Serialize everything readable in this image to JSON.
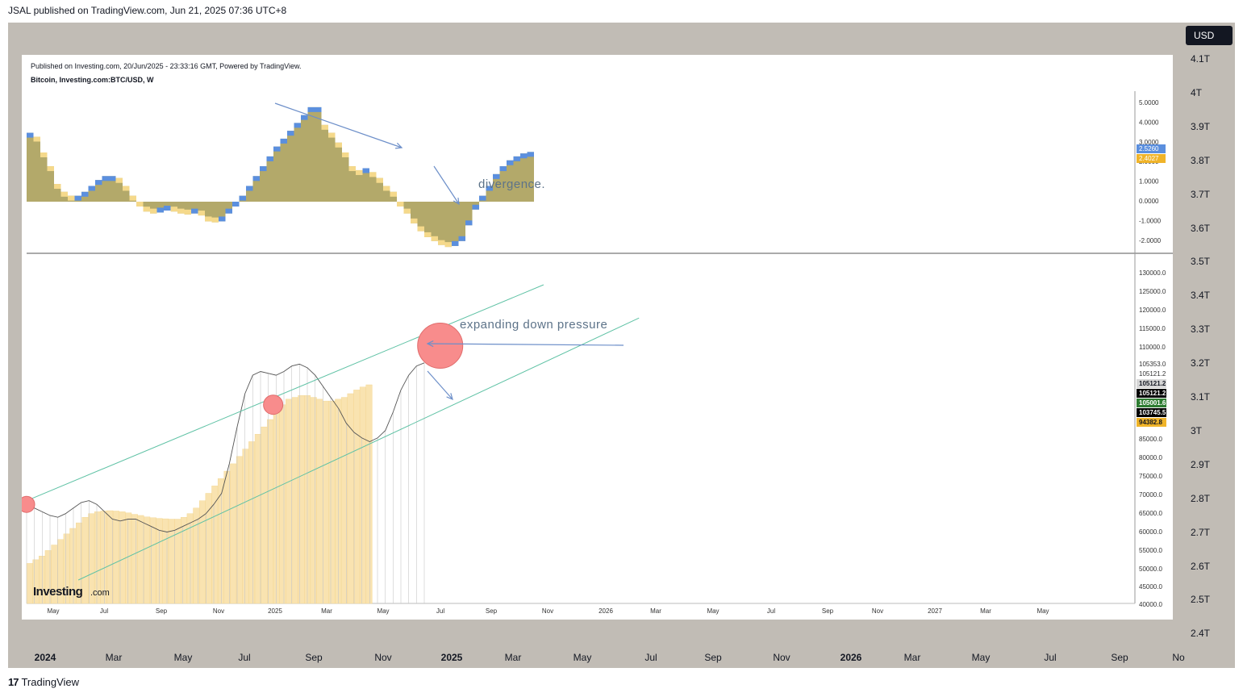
{
  "header": {
    "published_by": "JSAL published on TradingView.com, Jun 21, 2025 07:36 UTC+8"
  },
  "currency_button": "USD",
  "outer_price_axis": [
    "4.1T",
    "4T",
    "3.9T",
    "3.8T",
    "3.7T",
    "3.6T",
    "3.5T",
    "3.4T",
    "3.3T",
    "3.2T",
    "3.1T",
    "3T",
    "2.9T",
    "2.8T",
    "2.7T",
    "2.6T",
    "2.5T",
    "2.4T"
  ],
  "outer_time_axis": [
    {
      "label": "2024",
      "bold": true
    },
    {
      "label": "Mar"
    },
    {
      "label": "May"
    },
    {
      "label": "Jul"
    },
    {
      "label": "Sep"
    },
    {
      "label": "Nov"
    },
    {
      "label": "2025",
      "bold": true
    },
    {
      "label": "Mar"
    },
    {
      "label": "May"
    },
    {
      "label": "Jul"
    },
    {
      "label": "Sep"
    },
    {
      "label": "Nov"
    },
    {
      "label": "2026",
      "bold": true
    },
    {
      "label": "Mar"
    },
    {
      "label": "May"
    },
    {
      "label": "Jul"
    },
    {
      "label": "Sep"
    },
    {
      "label": "No"
    }
  ],
  "footer": {
    "brand": "TradingView"
  },
  "embedded": {
    "published_line": "Published on Investing.com, 20/Jun/2025 - 23:33:16 GMT, Powered by TradingView.",
    "symbol_line": "Bitcoin, Investing.com:BTC/USD, W",
    "watermark": "Investing",
    "watermark_suffix": ".com",
    "annotation_divergence": "divergence.",
    "annotation_pressure": "expanding down pressure",
    "inner_time_axis": [
      "May",
      "Jul",
      "Sep",
      "Nov",
      "2025",
      "Mar",
      "May",
      "Jul",
      "Sep",
      "Nov",
      "2026",
      "Mar",
      "May",
      "Jul",
      "Sep",
      "Nov",
      "2027",
      "Mar",
      "May"
    ],
    "osc_axis": [
      "5.0000",
      "4.0000",
      "3.0000",
      "2.0000",
      "1.0000",
      "0.0000",
      "-1.0000",
      "-2.0000"
    ],
    "osc_badges": [
      {
        "text": "2.5260",
        "color": "#5b8fde"
      },
      {
        "text": "2.4027",
        "color": "#f0b429"
      }
    ],
    "price_axis": [
      "130000.0",
      "125000.0",
      "120000.0",
      "115000.0",
      "110000.0",
      "105353.0",
      "105121.2",
      "85000.0",
      "80000.0",
      "75000.0",
      "70000.0",
      "65000.0",
      "60000.0",
      "55000.0",
      "50000.0",
      "45000.0",
      "40000.0"
    ],
    "price_badges": [
      {
        "text": "105121.2",
        "color": "#d7d7d7",
        "fg": "#131722"
      },
      {
        "text": "105121.2",
        "color": "#000000",
        "fg": "#ffffff"
      },
      {
        "text": "105001.6",
        "color": "#2e7d32",
        "fg": "#ffffff"
      },
      {
        "text": "103745.5",
        "color": "#000000",
        "fg": "#ffffff"
      },
      {
        "text": "94382.8",
        "color": "#f0b429",
        "fg": "#131722"
      }
    ]
  },
  "chart_data": [
    {
      "type": "bar",
      "name": "oscillator",
      "ylim": [
        -2.5,
        5.5
      ],
      "colors": {
        "rising": "#5b8fde",
        "falling": "#f5d98b",
        "body": "#b3a96a"
      },
      "values": [
        3.5,
        3.3,
        2.5,
        1.8,
        0.9,
        0.5,
        0.3,
        0.3,
        0.5,
        0.8,
        1.1,
        1.3,
        1.3,
        1.2,
        0.8,
        0.3,
        0,
        -0.5,
        -0.6,
        -0.55,
        -0.45,
        -0.5,
        -0.6,
        -0.65,
        -0.6,
        -0.7,
        -1.0,
        -1.05,
        -1.0,
        -0.6,
        0,
        0.3,
        0.8,
        1.3,
        1.8,
        2.3,
        2.8,
        3.2,
        3.6,
        4.0,
        4.4,
        4.8,
        4.8,
        3.9,
        3.5,
        3.0,
        2.5,
        1.8,
        1.6,
        1.7,
        1.5,
        1.2,
        0.8,
        0.5,
        0,
        -0.6,
        -1.1,
        -1.5,
        -1.8,
        -2.0,
        -2.2,
        -2.3,
        -2.25,
        -2.0,
        -1.2,
        -0.4,
        0.3,
        0.8,
        1.4,
        1.8,
        2.1,
        2.3,
        2.45,
        2.5264
      ]
    },
    {
      "type": "line",
      "name": "price",
      "ylim": [
        40000,
        134000
      ],
      "values": [
        67000,
        66000,
        65000,
        64000,
        63500,
        64500,
        66000,
        67500,
        68000,
        67000,
        65000,
        63000,
        62500,
        63000,
        63000,
        62000,
        61000,
        60000,
        59500,
        60000,
        61000,
        62000,
        63000,
        64500,
        67000,
        70000,
        78000,
        88000,
        97000,
        102000,
        103000,
        102500,
        102000,
        103000,
        104500,
        105000,
        104000,
        102000,
        99000,
        96000,
        93000,
        89000,
        86500,
        85000,
        84000,
        85000,
        87000,
        92000,
        98000,
        102000,
        104500,
        105353
      ],
      "channel": {
        "upper": [
          [
            0,
            68000
          ],
          [
            130,
            126500
          ]
        ],
        "lower": [
          [
            13,
            46500
          ],
          [
            154,
            117500
          ]
        ]
      }
    },
    {
      "type": "area",
      "name": "volume",
      "ylim": [
        40000,
        134000
      ],
      "values": [
        51000,
        52000,
        53000,
        54500,
        56000,
        57500,
        59000,
        60500,
        62000,
        63500,
        64500,
        65000,
        65200,
        65300,
        65200,
        65000,
        64700,
        64300,
        64000,
        63600,
        63400,
        63200,
        63100,
        63000,
        63000,
        63500,
        64500,
        66000,
        68000,
        70000,
        72000,
        74000,
        76000,
        78000,
        80000,
        82000,
        84000,
        86000,
        88000,
        90000,
        92000,
        94000,
        95500,
        96000,
        96500,
        96500,
        96000,
        95500,
        95000,
        95000,
        95500,
        96000,
        97000,
        98000,
        98800,
        99400
      ]
    },
    {
      "type": "scatter",
      "name": "markers",
      "points": [
        {
          "x": 0,
          "y": 67000
        },
        {
          "x": 62,
          "y": 94000
        },
        {
          "x": 104,
          "y": 110000
        }
      ]
    }
  ]
}
